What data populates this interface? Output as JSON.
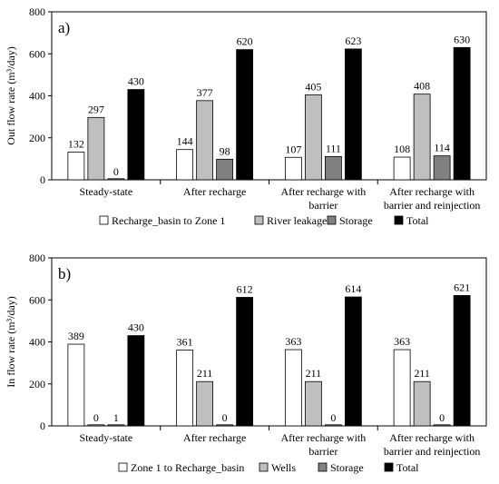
{
  "chart_data": [
    {
      "type": "bar",
      "panel_label": "a)",
      "ylabel": "Out flow rate (m³/day)",
      "xlabel": "",
      "ylim": [
        0,
        800
      ],
      "yticks": [
        "0",
        "200",
        "400",
        "600",
        "800"
      ],
      "grid": false,
      "legend_position": "bottom",
      "categories": [
        [
          "Steady-state"
        ],
        [
          "After recharge"
        ],
        [
          "After recharge with",
          "barrier"
        ],
        [
          "After recharge with",
          "barrier and reinjection"
        ]
      ],
      "series": [
        {
          "name": "Recharge_basin to Zone 1",
          "color": "#ffffff",
          "values": [
            132,
            144,
            107,
            108
          ]
        },
        {
          "name": "River leakage",
          "color": "#bfbfbf",
          "values": [
            297,
            377,
            405,
            408
          ]
        },
        {
          "name": "Storage",
          "color": "#808080",
          "values": [
            0,
            98,
            111,
            114
          ]
        },
        {
          "name": "Total",
          "color": "#000000",
          "values": [
            430,
            620,
            623,
            630
          ]
        }
      ]
    },
    {
      "type": "bar",
      "panel_label": "b)",
      "ylabel": "In flow rate (m³/day)",
      "xlabel": "",
      "ylim": [
        0,
        800
      ],
      "yticks": [
        "0",
        "200",
        "400",
        "600",
        "800"
      ],
      "grid": false,
      "legend_position": "bottom",
      "categories": [
        [
          "Steady-state"
        ],
        [
          "After recharge"
        ],
        [
          "After recharge with",
          "barrier"
        ],
        [
          "After recharge with",
          "barrier and reinjection"
        ]
      ],
      "series": [
        {
          "name": "Zone 1 to Recharge_basin",
          "color": "#ffffff",
          "values": [
            389,
            361,
            363,
            363
          ]
        },
        {
          "name": "Wells",
          "color": "#bfbfbf",
          "values": [
            0,
            211,
            211,
            211
          ]
        },
        {
          "name": "Storage",
          "color": "#808080",
          "values": [
            1,
            0,
            0,
            0
          ]
        },
        {
          "name": "Total",
          "color": "#000000",
          "values": [
            430,
            612,
            614,
            621
          ]
        }
      ]
    }
  ]
}
